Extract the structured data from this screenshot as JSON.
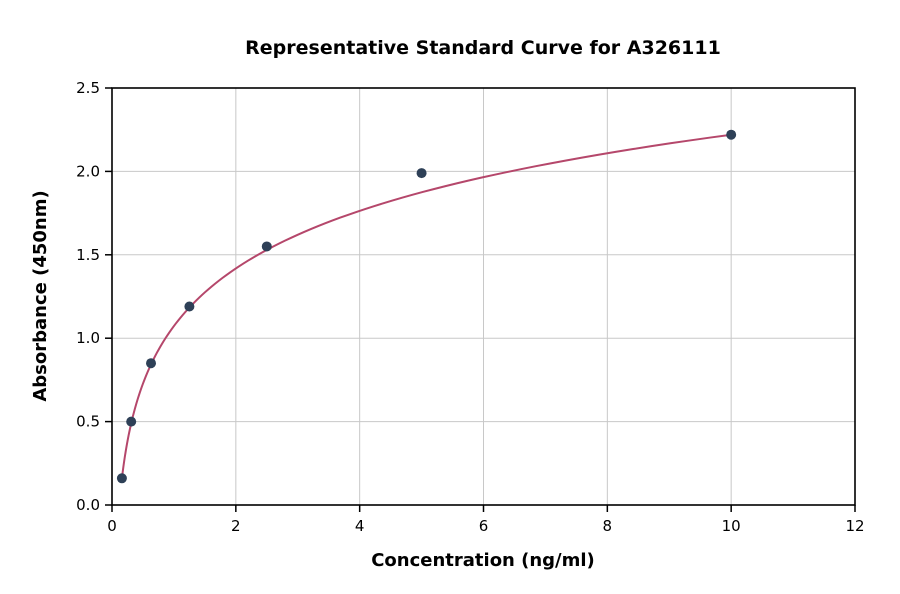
{
  "chart_data": {
    "type": "scatter",
    "title": "Representative Standard Curve for A326111",
    "xlabel": "Concentration (ng/ml)",
    "ylabel": "Absorbance (450nm)",
    "x": [
      0.16,
      0.31,
      0.63,
      1.25,
      2.5,
      5,
      10
    ],
    "y": [
      0.16,
      0.5,
      0.85,
      1.19,
      1.55,
      1.99,
      2.22
    ],
    "curve_fit": "logarithmic",
    "xlim": [
      0,
      12
    ],
    "ylim": [
      0,
      2.5
    ],
    "xticks": [
      0,
      2,
      4,
      6,
      8,
      10,
      12
    ],
    "xtick_labels": [
      "0",
      "2",
      "4",
      "6",
      "8",
      "10",
      "12"
    ],
    "yticks": [
      0,
      0.5,
      1,
      1.5,
      2,
      2.5
    ],
    "ytick_labels": [
      "0.0",
      "0.5",
      "1.0",
      "1.5",
      "2.0",
      "2.5"
    ],
    "grid": true,
    "legend": "none",
    "colors": {
      "curve": "#b5476b",
      "points": "#2e4057",
      "grid": "#c8c8c8",
      "axis": "#000000",
      "background": "#ffffff"
    }
  }
}
